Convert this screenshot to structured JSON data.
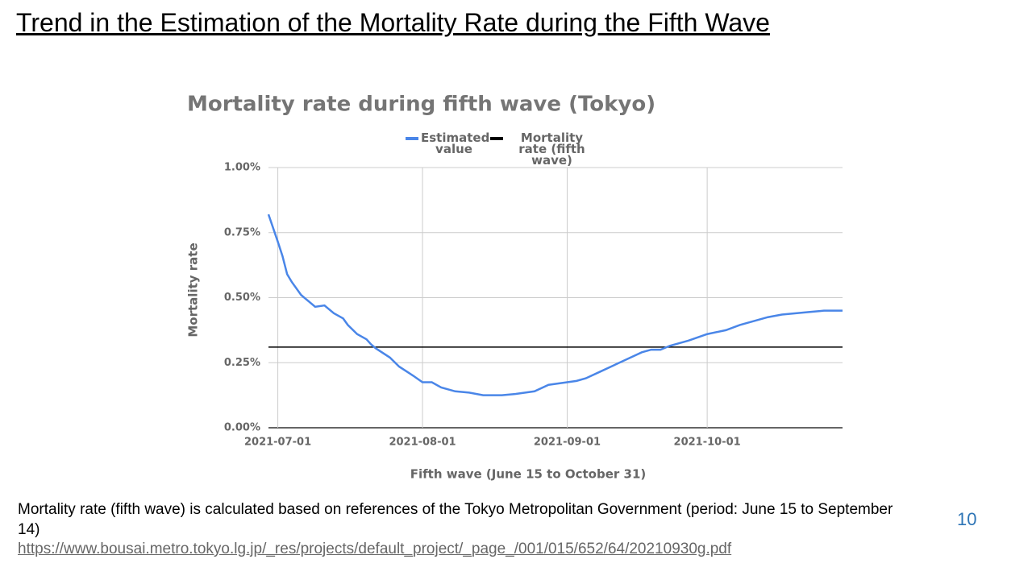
{
  "slide": {
    "title": "Trend in the Estimation of the Mortality Rate during the Fifth Wave",
    "note": "Mortality rate (fifth wave) is calculated based on references of the Tokyo Metropolitan Government (period: June 15 to September 14)",
    "url": "https://www.bousai.metro.tokyo.lg.jp/_res/projects/default_project/_page_/001/015/652/64/20210930g.pdf",
    "page_number": "10"
  },
  "chart_data": {
    "type": "line",
    "title": "Mortality rate during fifth wave (Tokyo)",
    "x_label": "Fifth wave (June 15 to October 31)",
    "y_label": "Mortality rate",
    "x": [
      "2021-06-29",
      "2021-07-01",
      "2021-07-02",
      "2021-07-03",
      "2021-07-04",
      "2021-07-06",
      "2021-07-09",
      "2021-07-11",
      "2021-07-13",
      "2021-07-15",
      "2021-07-16",
      "2021-07-18",
      "2021-07-20",
      "2021-07-21",
      "2021-07-22",
      "2021-07-25",
      "2021-07-27",
      "2021-07-30",
      "2021-08-01",
      "2021-08-03",
      "2021-08-05",
      "2021-08-08",
      "2021-08-11",
      "2021-08-14",
      "2021-08-18",
      "2021-08-21",
      "2021-08-25",
      "2021-08-28",
      "2021-09-01",
      "2021-09-03",
      "2021-09-05",
      "2021-09-08",
      "2021-09-11",
      "2021-09-14",
      "2021-09-17",
      "2021-09-19",
      "2021-09-21",
      "2021-09-23",
      "2021-09-27",
      "2021-10-01",
      "2021-10-05",
      "2021-10-08",
      "2021-10-11",
      "2021-10-14",
      "2021-10-17",
      "2021-10-20",
      "2021-10-23",
      "2021-10-26",
      "2021-10-30"
    ],
    "series": [
      {
        "name": "Estimated value",
        "color": "#4a86e8",
        "values": [
          0.82,
          0.715,
          0.66,
          0.59,
          0.56,
          0.51,
          0.465,
          0.47,
          0.44,
          0.42,
          0.395,
          0.36,
          0.34,
          0.32,
          0.305,
          0.27,
          0.235,
          0.2,
          0.175,
          0.175,
          0.155,
          0.14,
          0.135,
          0.125,
          0.125,
          0.13,
          0.14,
          0.165,
          0.175,
          0.18,
          0.19,
          0.215,
          0.24,
          0.265,
          0.29,
          0.3,
          0.3,
          0.315,
          0.335,
          0.36,
          0.375,
          0.395,
          0.41,
          0.425,
          0.435,
          0.44,
          0.445,
          0.45,
          0.45
        ]
      }
    ],
    "reference_lines": [
      {
        "name": "Mortality rate (fifth wave)",
        "value": 0.31,
        "color": "#000000"
      }
    ],
    "xlim": [
      "2021-06-29",
      "2021-10-30"
    ],
    "xticks": [
      "2021-07-01",
      "2021-08-01",
      "2021-09-01",
      "2021-10-01"
    ],
    "ylim": [
      0,
      1
    ],
    "yticks": [
      {
        "value": 0,
        "label": "0.00%"
      },
      {
        "value": 0.25,
        "label": "0.25%"
      },
      {
        "value": 0.5,
        "label": "0.50%"
      },
      {
        "value": 0.75,
        "label": "0.75%"
      },
      {
        "value": 1,
        "label": "1.00%"
      }
    ],
    "grid": true
  }
}
